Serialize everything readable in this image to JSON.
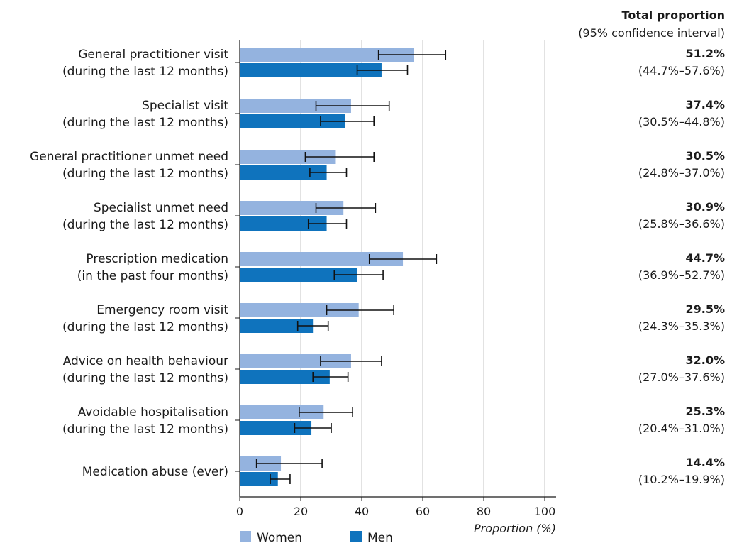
{
  "chart_data": {
    "type": "bar",
    "orientation": "horizontal",
    "categories": [
      [
        "General practitioner visit",
        "(during the last 12 months)"
      ],
      [
        "Specialist visit",
        "(during the last 12 months)"
      ],
      [
        "General practitioner unmet need",
        "(during the last 12 months)"
      ],
      [
        "Specialist unmet need",
        "(during the last 12 months)"
      ],
      [
        "Prescription medication",
        "(in the past four months)"
      ],
      [
        "Emergency room visit",
        "(during the last 12 months)"
      ],
      [
        "Advice on health behaviour",
        "(during the last 12 months)"
      ],
      [
        "Avoidable hospitalisation",
        "(during the last 12 months)"
      ],
      [
        "Medication abuse (ever)"
      ]
    ],
    "series": [
      {
        "name": "Women",
        "color": "#94b3df",
        "values": [
          57,
          36.5,
          31.5,
          34,
          53.5,
          39,
          36.5,
          27.5,
          13.5
        ],
        "ci_low": [
          45.5,
          25,
          21.5,
          25,
          42.5,
          28.5,
          26.5,
          19.5,
          5.5
        ],
        "ci_high": [
          67.5,
          49,
          44,
          44.5,
          64.5,
          50.5,
          46.5,
          37,
          27
        ]
      },
      {
        "name": "Men",
        "color": "#0f73bd",
        "values": [
          46.5,
          34.5,
          28.5,
          28.5,
          38.5,
          24,
          29.5,
          23.5,
          12.5
        ],
        "ci_low": [
          38.5,
          26.5,
          23,
          22.5,
          31,
          19,
          24,
          18,
          10
        ],
        "ci_high": [
          55,
          44,
          35,
          35,
          47,
          29,
          35.5,
          30,
          16.5
        ]
      }
    ],
    "xlim": [
      0,
      100
    ],
    "xticks": [
      0,
      20,
      40,
      60,
      80,
      100
    ],
    "xlabel": "Proportion (%)",
    "grid": "vertical",
    "legend_position": "bottom-left"
  },
  "right_column": {
    "heading": "Total proportion",
    "subheading": "(95% confidence interval)",
    "totals": [
      {
        "value": "51.2%",
        "ci": "(44.7%–57.6%)"
      },
      {
        "value": "37.4%",
        "ci": "(30.5%–44.8%)"
      },
      {
        "value": "30.5%",
        "ci": "(24.8%–37.0%)"
      },
      {
        "value": "30.9%",
        "ci": "(25.8%–36.6%)"
      },
      {
        "value": "44.7%",
        "ci": "(36.9%–52.7%)"
      },
      {
        "value": "29.5%",
        "ci": "(24.3%–35.3%)"
      },
      {
        "value": "32.0%",
        "ci": "(27.0%–37.6%)"
      },
      {
        "value": "25.3%",
        "ci": "(20.4%–31.0%)"
      },
      {
        "value": "14.4%",
        "ci": "(10.2%–19.9%)"
      }
    ]
  }
}
